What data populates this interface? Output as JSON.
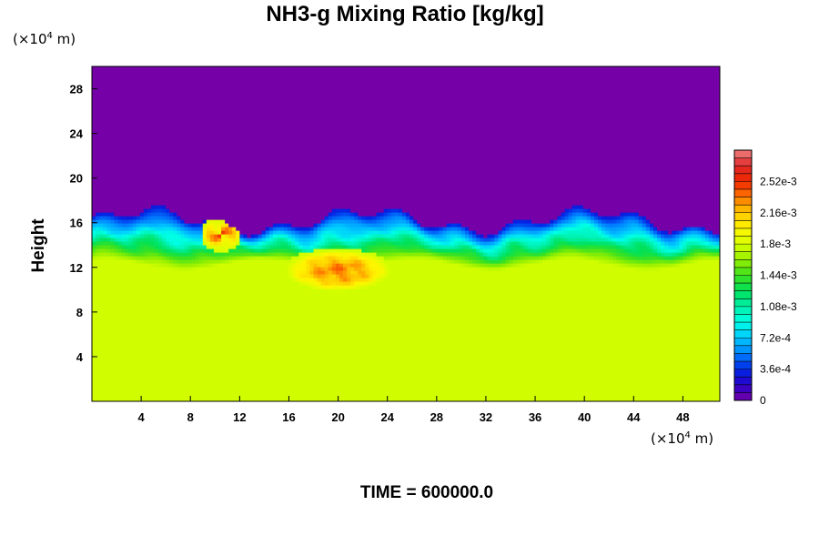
{
  "chart_data": {
    "type": "heatmap",
    "title": "NH3-g Mixing Ratio [kg/kg]",
    "ylabel": "Height",
    "xlabel": "",
    "y_unit": "(×10⁴ m)",
    "x_unit": "(×10⁴ m)",
    "xlim": [
      0,
      51
    ],
    "ylim": [
      0,
      30
    ],
    "x_ticks": [
      4,
      8,
      12,
      16,
      20,
      24,
      28,
      32,
      36,
      40,
      44,
      48
    ],
    "y_ticks": [
      4,
      8,
      12,
      16,
      20,
      24,
      28
    ],
    "colorbar": {
      "min": 0,
      "max": 0.00288,
      "step": 9e-05,
      "labels": [
        "0",
        "3.6e-4",
        "7.2e-4",
        "1.08e-3",
        "1.44e-3",
        "1.8e-3",
        "2.16e-3",
        "2.52e-3"
      ],
      "label_values": [
        0,
        0.00036,
        0.00072,
        0.00108,
        0.00144,
        0.0018,
        0.00216,
        0.00252
      ]
    },
    "field_summary": {
      "lower_layer_value": 0.00178,
      "upper_layer_value": 0,
      "transition_height_range": [
        13,
        17.5
      ],
      "core_region": {
        "x_range": [
          16,
          24
        ],
        "y_range": [
          10,
          13.5
        ],
        "value": 0.0024
      },
      "rotor": {
        "x": 10.5,
        "y": 15,
        "value": 0.0025
      }
    }
  },
  "footer": "TIME = 600000.0"
}
